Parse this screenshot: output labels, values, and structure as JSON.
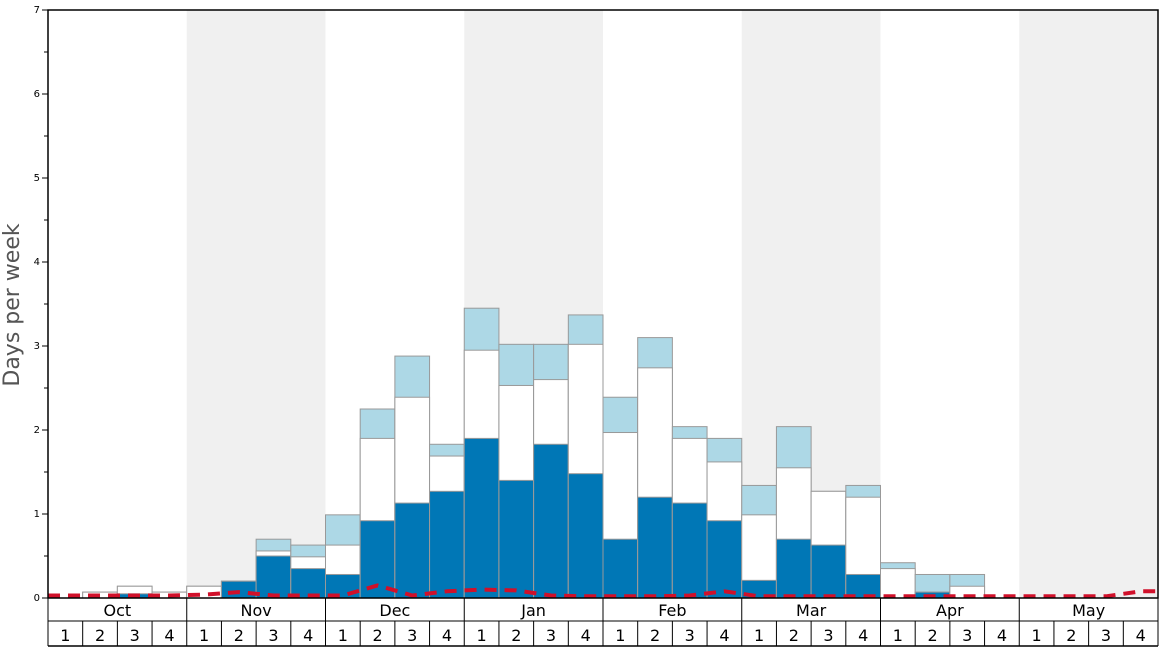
{
  "chart_data": {
    "type": "bar",
    "ylabel": "Days per week",
    "ylim": [
      0,
      7
    ],
    "yticks": [
      "0",
      "1",
      "2",
      "3",
      "4",
      "5",
      "6",
      "7"
    ],
    "months": [
      "Oct",
      "Nov",
      "Dec",
      "Jan",
      "Feb",
      "Mar",
      "Apr",
      "May"
    ],
    "weeks": [
      "1",
      "2",
      "3",
      "4"
    ],
    "alt_shading": [
      false,
      true,
      false,
      true,
      false,
      true,
      false,
      true
    ],
    "colors": {
      "dark": "#0077b6",
      "mid": "#ffffff",
      "light": "#add8e6",
      "bar_stroke": "#999999",
      "shade": "#f0f0f0",
      "dashed": "#d0102a"
    },
    "series": [
      {
        "values": [
          0,
          0,
          0.05,
          0,
          0,
          0.2,
          0.5,
          0.35,
          0.28,
          0.92,
          1.13,
          1.27,
          1.9,
          1.4,
          1.83,
          1.48,
          0.7,
          1.2,
          1.13,
          0.92,
          0.21,
          0.7,
          0.63,
          0.28,
          0,
          0.07,
          0,
          0,
          0,
          0,
          0,
          0
        ]
      },
      {
        "values": [
          0,
          0.07,
          0.14,
          0.07,
          0.14,
          0.2,
          0.56,
          0.49,
          0.63,
          1.9,
          2.39,
          1.69,
          2.95,
          2.53,
          2.6,
          3.02,
          1.97,
          2.74,
          1.9,
          1.62,
          0.99,
          1.55,
          1.27,
          1.2,
          0.35,
          0.07,
          0.14,
          0,
          0,
          0,
          0,
          0
        ]
      },
      {
        "values": [
          0,
          0.07,
          0.14,
          0.07,
          0.14,
          0.2,
          0.7,
          0.63,
          0.99,
          2.25,
          2.88,
          1.83,
          3.45,
          3.02,
          3.02,
          3.37,
          2.39,
          3.1,
          2.04,
          1.9,
          1.34,
          2.04,
          1.27,
          1.34,
          0.42,
          0.28,
          0.28,
          0,
          0,
          0,
          0,
          0
        ]
      }
    ],
    "dashed_line": [
      0.03,
      0.03,
      0.03,
      0.03,
      0.04,
      0.07,
      0.03,
      0.03,
      0.03,
      0.15,
      0.03,
      0.08,
      0.1,
      0.09,
      0.03,
      0.02,
      0.02,
      0.02,
      0.03,
      0.08,
      0.02,
      0.02,
      0.02,
      0.02,
      0.02,
      0.02,
      0.02,
      0.02,
      0.02,
      0.02,
      0.02,
      0.08
    ]
  }
}
